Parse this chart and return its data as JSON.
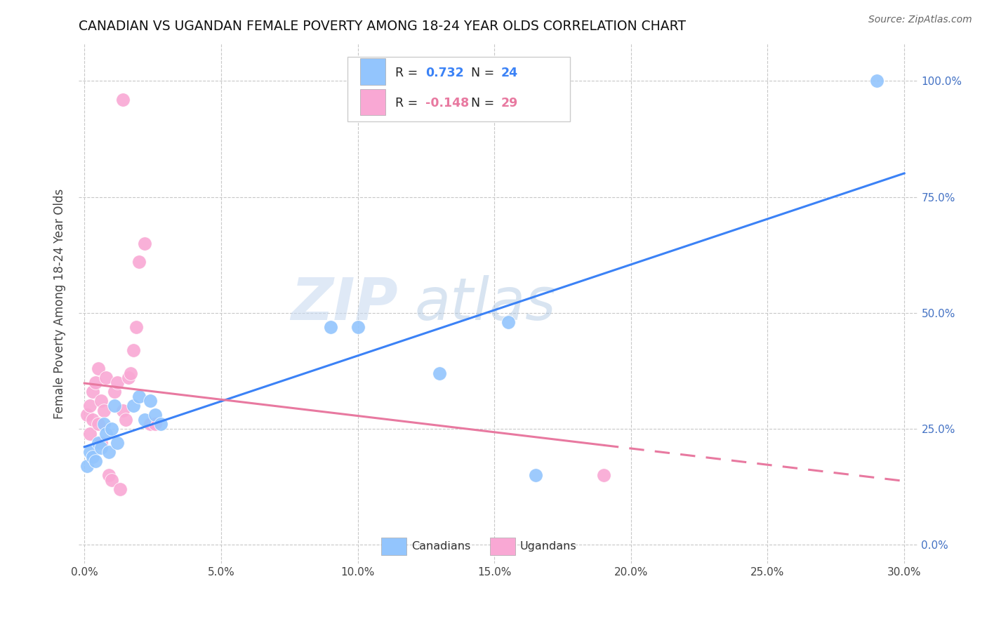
{
  "title": "CANADIAN VS UGANDAN FEMALE POVERTY AMONG 18-24 YEAR OLDS CORRELATION CHART",
  "source": "Source: ZipAtlas.com",
  "ylabel": "Female Poverty Among 18-24 Year Olds",
  "xlabel_vals": [
    0.0,
    0.05,
    0.1,
    0.15,
    0.2,
    0.25,
    0.3
  ],
  "ylabel_vals": [
    0.0,
    0.25,
    0.5,
    0.75,
    1.0
  ],
  "xlim": [
    -0.002,
    0.305
  ],
  "ylim": [
    -0.04,
    1.08
  ],
  "canadian_R": 0.732,
  "canadian_N": 24,
  "ugandan_R": -0.148,
  "ugandan_N": 29,
  "canadian_color": "#93c5fd",
  "ugandan_color": "#f9a8d4",
  "canadian_line_color": "#3b82f6",
  "ugandan_line_color": "#e879a0",
  "canadians_x": [
    0.001,
    0.002,
    0.003,
    0.004,
    0.005,
    0.006,
    0.007,
    0.008,
    0.009,
    0.01,
    0.011,
    0.012,
    0.018,
    0.02,
    0.022,
    0.024,
    0.026,
    0.028,
    0.09,
    0.1,
    0.13,
    0.155,
    0.29,
    0.165
  ],
  "canadians_y": [
    0.17,
    0.2,
    0.19,
    0.18,
    0.22,
    0.21,
    0.26,
    0.24,
    0.2,
    0.25,
    0.3,
    0.22,
    0.3,
    0.32,
    0.27,
    0.31,
    0.28,
    0.26,
    0.47,
    0.47,
    0.37,
    0.48,
    1.0,
    0.15
  ],
  "ugandans_x": [
    0.001,
    0.002,
    0.002,
    0.003,
    0.003,
    0.004,
    0.005,
    0.005,
    0.006,
    0.006,
    0.007,
    0.008,
    0.009,
    0.01,
    0.011,
    0.012,
    0.013,
    0.014,
    0.015,
    0.016,
    0.017,
    0.018,
    0.019,
    0.02,
    0.022,
    0.024,
    0.026,
    0.19,
    0.014
  ],
  "ugandans_y": [
    0.28,
    0.3,
    0.24,
    0.33,
    0.27,
    0.35,
    0.26,
    0.38,
    0.31,
    0.22,
    0.29,
    0.36,
    0.15,
    0.14,
    0.33,
    0.35,
    0.12,
    0.29,
    0.27,
    0.36,
    0.37,
    0.42,
    0.47,
    0.61,
    0.65,
    0.26,
    0.26,
    0.15,
    0.96
  ],
  "watermark_zip": "ZIP",
  "watermark_atlas": "atlas"
}
